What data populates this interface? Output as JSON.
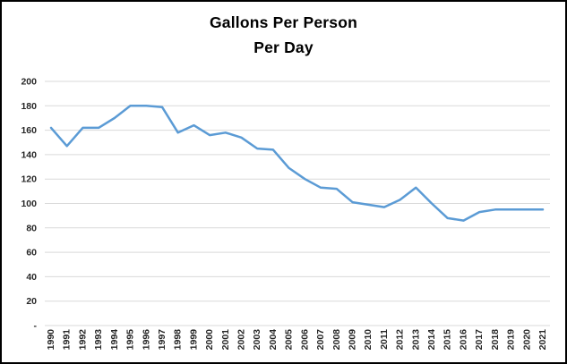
{
  "window": {
    "background": "#ffffff",
    "border_color": "#000000"
  },
  "chart_data": {
    "type": "line",
    "title": "Gallons Per Person Per Day",
    "title_lines": [
      "Gallons Per Person",
      "Per Day"
    ],
    "xlabel": "",
    "ylabel": "",
    "categories": [
      "1990",
      "1991",
      "1992",
      "1993",
      "1994",
      "1995",
      "1996",
      "1997",
      "1998",
      "1999",
      "2000",
      "2001",
      "2002",
      "2003",
      "2004",
      "2005",
      "2006",
      "2007",
      "2008",
      "2009",
      "2010",
      "2011",
      "2012",
      "2013",
      "2014",
      "2015",
      "2016",
      "2017",
      "2018",
      "2019",
      "2020",
      "2021"
    ],
    "series": [
      {
        "name": "Gallons per person per day",
        "color": "#5B9BD5",
        "values": [
          162,
          147,
          162,
          162,
          170,
          180,
          180,
          179,
          158,
          164,
          156,
          158,
          154,
          145,
          144,
          129,
          120,
          113,
          112,
          101,
          99,
          97,
          103,
          113,
          100,
          88,
          86,
          93,
          95,
          95,
          95,
          95
        ]
      }
    ],
    "ylim": [
      0,
      200
    ],
    "y_tick_step": 20,
    "y_tick_values": [
      200,
      180,
      160,
      140,
      120,
      100,
      80,
      60,
      40,
      20,
      0
    ],
    "y_tick_labels": [
      "200",
      "180",
      "160",
      "140",
      "120",
      "100",
      "80",
      "60",
      "40",
      "20",
      "-"
    ],
    "x_tick_rotation": -90,
    "grid": "horizontal",
    "gridline_color": "#d9d9d9",
    "tick_label_color": "#262626",
    "legend": "none"
  }
}
